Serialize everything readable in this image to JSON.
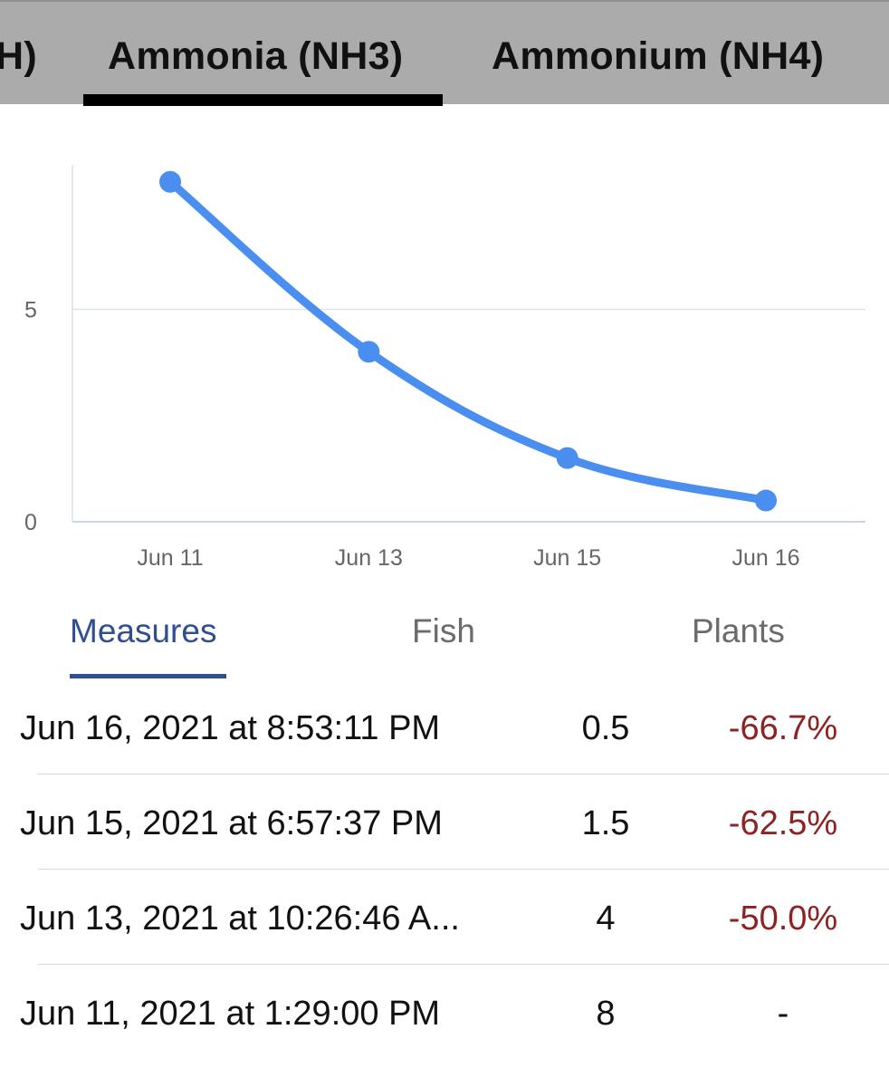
{
  "top_tabs": {
    "items": [
      {
        "label": "H)"
      },
      {
        "label": "Ammonia (NH3)"
      },
      {
        "label": "Ammonium (NH4)"
      }
    ],
    "active": "Ammonia (NH3)"
  },
  "chart_data": {
    "type": "line",
    "categories": [
      "Jun 11",
      "Jun 13",
      "Jun 15",
      "Jun 16"
    ],
    "series": [
      {
        "values": [
          8,
          4,
          1.5,
          0.5
        ],
        "color": "#4a8ef0"
      }
    ],
    "yticks": [
      "0",
      "5"
    ],
    "ylim": [
      0,
      8.4
    ],
    "grid": true,
    "title": "",
    "xlabel": "",
    "ylabel": ""
  },
  "segment_tabs": {
    "items": [
      {
        "label": "Measures"
      },
      {
        "label": "Fish"
      },
      {
        "label": "Plants"
      }
    ],
    "active": "Measures"
  },
  "measures": [
    {
      "date": "Jun 16, 2021 at 8:53:11 PM",
      "value": "0.5",
      "change": "-66.7%"
    },
    {
      "date": "Jun 15, 2021 at 6:57:37 PM",
      "value": "1.5",
      "change": "-62.5%"
    },
    {
      "date": "Jun 13, 2021 at 10:26:46 A...",
      "value": "4",
      "change": "-50.0%"
    },
    {
      "date": "Jun 11, 2021 at 1:29:00 PM",
      "value": "8",
      "change": "-"
    }
  ],
  "colors": {
    "accent": "#2f4f8e",
    "negative": "#8e2121",
    "line": "#4a8ef0",
    "topbar": "#ababab"
  }
}
